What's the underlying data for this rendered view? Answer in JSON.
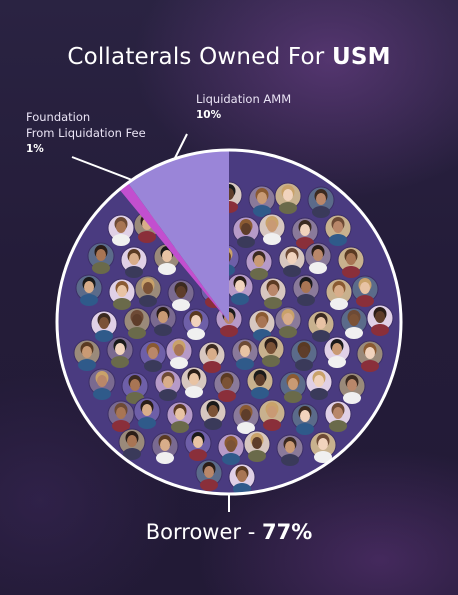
{
  "title_prefix": "Collaterals Owned For",
  "title_bold": "USM",
  "colors": {
    "borrower": "#4a3b80",
    "amm": "#9a85d8",
    "foundation": "#c24fcf",
    "outline": "#ffffff"
  },
  "labels": {
    "amm_name": "Liquidation AMM",
    "amm_pct": "10%",
    "foundation_line1": "Foundation",
    "foundation_line2": "From Liquidation Fee",
    "foundation_pct": "1%",
    "borrower_name": "Borrower -",
    "borrower_pct": "77%"
  },
  "chart_data": {
    "type": "pie",
    "title": "Collaterals Owned For USM",
    "slices": [
      {
        "label": "Borrower",
        "value": 77
      },
      {
        "label": "Liquidation AMM",
        "value": 10
      },
      {
        "label": "Foundation From Liquidation Fee",
        "value": 1
      }
    ],
    "note": "Slices as labeled; the borrower area is filled with a collage of avatar photos."
  }
}
